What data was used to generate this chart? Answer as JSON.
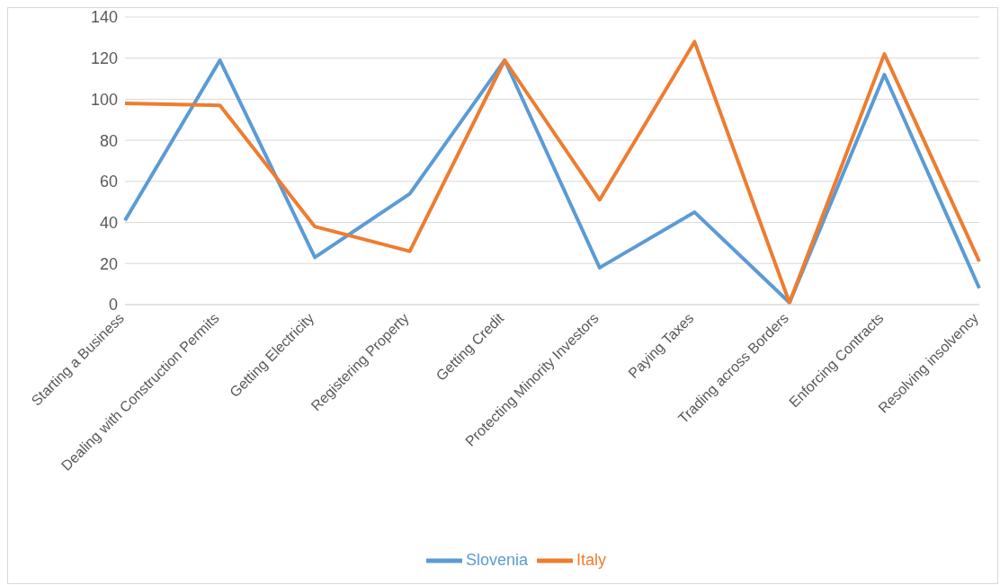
{
  "chart_data": {
    "type": "line",
    "categories": [
      "Starting a Business",
      "Dealing with Construction Permits",
      "Getting Electricity",
      "Registering Property",
      "Getting Credit",
      "Protecting Minority Investors",
      "Paying Taxes",
      "Trading across Borders",
      "Enforcing Contracts",
      "Resolving insolvency"
    ],
    "series": [
      {
        "name": "Slovenia",
        "color": "#5b9bd5",
        "values": [
          41,
          119,
          23,
          54,
          119,
          18,
          45,
          1,
          112,
          8
        ]
      },
      {
        "name": "Italy",
        "color": "#ed7d31",
        "values": [
          98,
          97,
          38,
          26,
          119,
          51,
          128,
          1,
          122,
          21
        ]
      }
    ],
    "ylim": [
      0,
      140
    ],
    "yticks": [
      0,
      20,
      40,
      60,
      80,
      100,
      120,
      140
    ],
    "grid": "y",
    "legend": "bottom",
    "marker": "none",
    "line_style": "solid"
  }
}
